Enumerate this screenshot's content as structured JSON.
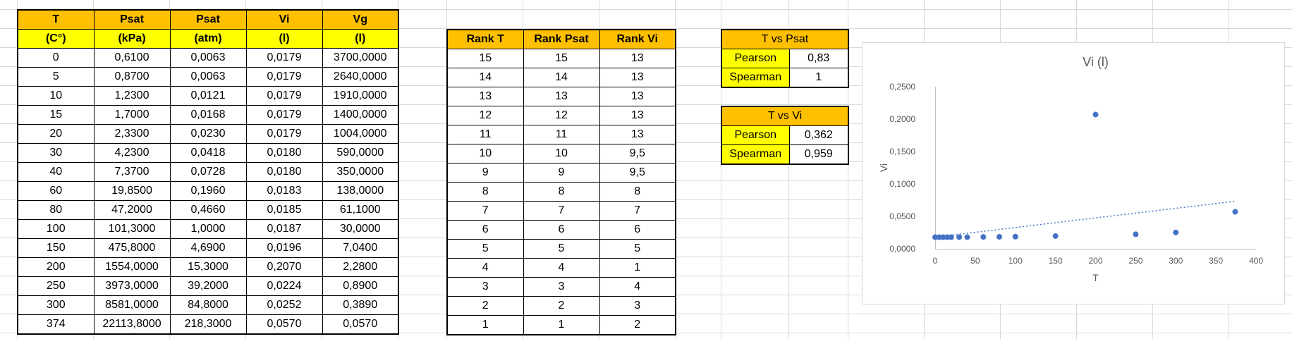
{
  "table": {
    "headers": [
      "T",
      "Psat",
      "Psat",
      "Vi",
      "Vg"
    ],
    "units": [
      "(C°)",
      "(kPa)",
      "(atm)",
      "(l)",
      "(l)"
    ],
    "rows": [
      [
        "0",
        "0,6100",
        "0,0063",
        "0,0179",
        "3700,0000"
      ],
      [
        "5",
        "0,8700",
        "0,0063",
        "0,0179",
        "2640,0000"
      ],
      [
        "10",
        "1,2300",
        "0,0121",
        "0,0179",
        "1910,0000"
      ],
      [
        "15",
        "1,7000",
        "0,0168",
        "0,0179",
        "1400,0000"
      ],
      [
        "20",
        "2,3300",
        "0,0230",
        "0,0179",
        "1004,0000"
      ],
      [
        "30",
        "4,2300",
        "0,0418",
        "0,0180",
        "590,0000"
      ],
      [
        "40",
        "7,3700",
        "0,0728",
        "0,0180",
        "350,0000"
      ],
      [
        "60",
        "19,8500",
        "0,1960",
        "0,0183",
        "138,0000"
      ],
      [
        "80",
        "47,2000",
        "0,4660",
        "0,0185",
        "61,1000"
      ],
      [
        "100",
        "101,3000",
        "1,0000",
        "0,0187",
        "30,0000"
      ],
      [
        "150",
        "475,8000",
        "4,6900",
        "0,0196",
        "7,0400"
      ],
      [
        "200",
        "1554,0000",
        "15,3000",
        "0,2070",
        "2,2800"
      ],
      [
        "250",
        "3973,0000",
        "39,2000",
        "0,0224",
        "0,8900"
      ],
      [
        "300",
        "8581,0000",
        "84,8000",
        "0,0252",
        "0,3890"
      ],
      [
        "374",
        "22113,8000",
        "218,3000",
        "0,0570",
        "0,0570"
      ]
    ]
  },
  "ranks": {
    "headers": [
      "Rank T",
      "Rank Psat",
      "Rank Vi"
    ],
    "rows": [
      [
        "15",
        "15",
        "13"
      ],
      [
        "14",
        "14",
        "13"
      ],
      [
        "13",
        "13",
        "13"
      ],
      [
        "12",
        "12",
        "13"
      ],
      [
        "11",
        "11",
        "13"
      ],
      [
        "10",
        "10",
        "9,5"
      ],
      [
        "9",
        "9",
        "9,5"
      ],
      [
        "8",
        "8",
        "8"
      ],
      [
        "7",
        "7",
        "7"
      ],
      [
        "6",
        "6",
        "6"
      ],
      [
        "5",
        "5",
        "5"
      ],
      [
        "4",
        "4",
        "1"
      ],
      [
        "3",
        "3",
        "4"
      ],
      [
        "2",
        "2",
        "3"
      ],
      [
        "1",
        "1",
        "2"
      ]
    ]
  },
  "correlations": [
    {
      "title": "T vs Psat",
      "pearson_label": "Pearson",
      "pearson": "0,83",
      "spearman_label": "Spearman",
      "spearman": "1"
    },
    {
      "title": "T vs Vi",
      "pearson_label": "Pearson",
      "pearson": "0,362",
      "spearman_label": "Spearman",
      "spearman": "0,959"
    }
  ],
  "colors": {
    "header_orange": "#ffc000",
    "header_yellow": "#ffff00",
    "point_blue": "#4472c4",
    "gridline": "#d9d9d9"
  },
  "chart_data": {
    "type": "scatter",
    "title": "Vi (l)",
    "xlabel": "T",
    "ylabel": "Vi",
    "xlim": [
      0,
      400
    ],
    "ylim": [
      0,
      0.25
    ],
    "x_ticks": [
      "0",
      "50",
      "100",
      "150",
      "200",
      "250",
      "300",
      "350",
      "400"
    ],
    "y_ticks": [
      "0,0000",
      "0,0500",
      "0,1000",
      "0,1500",
      "0,2000",
      "0,2500"
    ],
    "trendline": "linear, dotted",
    "grid": false,
    "points": [
      {
        "x": 0,
        "y": 0.0179
      },
      {
        "x": 5,
        "y": 0.0179
      },
      {
        "x": 10,
        "y": 0.0179
      },
      {
        "x": 15,
        "y": 0.0179
      },
      {
        "x": 20,
        "y": 0.0179
      },
      {
        "x": 30,
        "y": 0.018
      },
      {
        "x": 40,
        "y": 0.018
      },
      {
        "x": 60,
        "y": 0.0183
      },
      {
        "x": 80,
        "y": 0.0185
      },
      {
        "x": 100,
        "y": 0.0187
      },
      {
        "x": 150,
        "y": 0.0196
      },
      {
        "x": 200,
        "y": 0.207
      },
      {
        "x": 250,
        "y": 0.0224
      },
      {
        "x": 300,
        "y": 0.0252
      },
      {
        "x": 374,
        "y": 0.057
      }
    ]
  }
}
